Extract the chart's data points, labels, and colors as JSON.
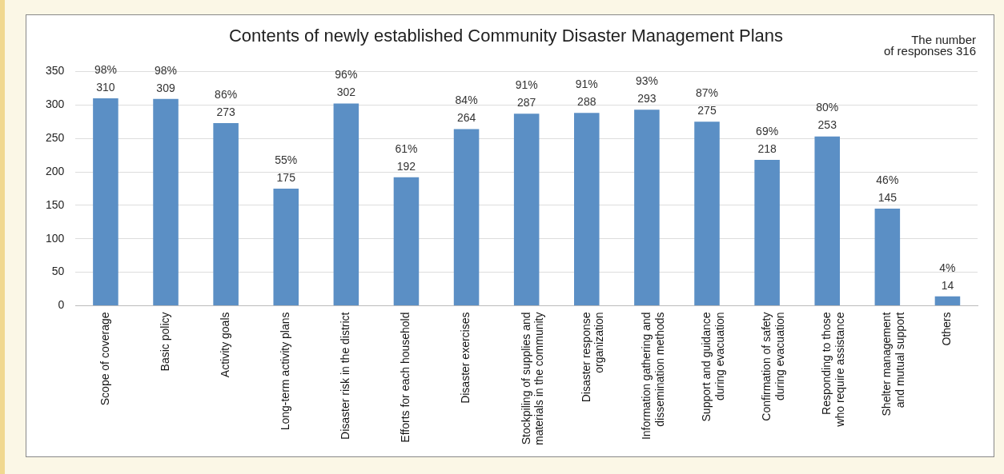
{
  "chart_data": {
    "type": "bar",
    "title": "Contents of newly established Community Disaster Management Plans",
    "categories": [
      "Scope of coverage",
      "Basic policy",
      "Activity goals",
      "Long-term activity plans",
      "Disaster risk in the district",
      "Efforts for each household",
      "Disaster exercises",
      "Stockpiling of supplies and\nmaterials in the community",
      "Disaster response\norganization",
      "Information gathering and\ndissemination methods",
      "Support and guidance\nduring evacuation",
      "Confirmation of safety\nduring evacuation",
      "Responding to those\nwho require assistance",
      "Shelter management\nand mutual support",
      "Others"
    ],
    "values": [
      310,
      309,
      273,
      175,
      302,
      192,
      264,
      287,
      288,
      293,
      275,
      218,
      253,
      145,
      14
    ],
    "value_labels": [
      "98%\n310",
      "98%\n309",
      "86%\n273",
      "55%\n175",
      "96%\n302",
      "61%\n192",
      "84%\n264",
      "91%\n287",
      "91%\n288",
      "93%\n293",
      "87%\n275",
      "69%\n218",
      "80%\n253",
      "46%\n145",
      "4%\n14"
    ],
    "color": "#5b8fc5",
    "ylim": [
      0,
      350
    ],
    "yticks": [
      0,
      50,
      100,
      150,
      200,
      250,
      300,
      350
    ],
    "grid": "y",
    "legend": false,
    "annotations": [
      "The number\nof responses 316"
    ]
  }
}
